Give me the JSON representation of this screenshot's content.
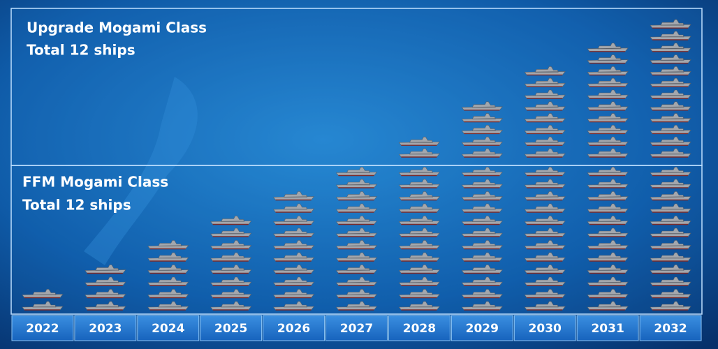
{
  "chart_data": {
    "type": "pictograph",
    "categories": [
      "2022",
      "2023",
      "2024",
      "2025",
      "2026",
      "2027",
      "2028",
      "2029",
      "2030",
      "2031",
      "2032"
    ],
    "series": [
      {
        "name": "FFM Mogami Class",
        "label": "Total 12 ships",
        "color": "#a3a7ad",
        "values": [
          2,
          4,
          6,
          8,
          10,
          12,
          12,
          12,
          12,
          12,
          12
        ]
      },
      {
        "name": "Upgrade Mogami Class",
        "label": "Total 12 ships",
        "color": "#a3a7ad",
        "values": [
          0,
          0,
          0,
          0,
          0,
          0,
          2,
          5,
          8,
          10,
          12
        ]
      }
    ]
  }
}
